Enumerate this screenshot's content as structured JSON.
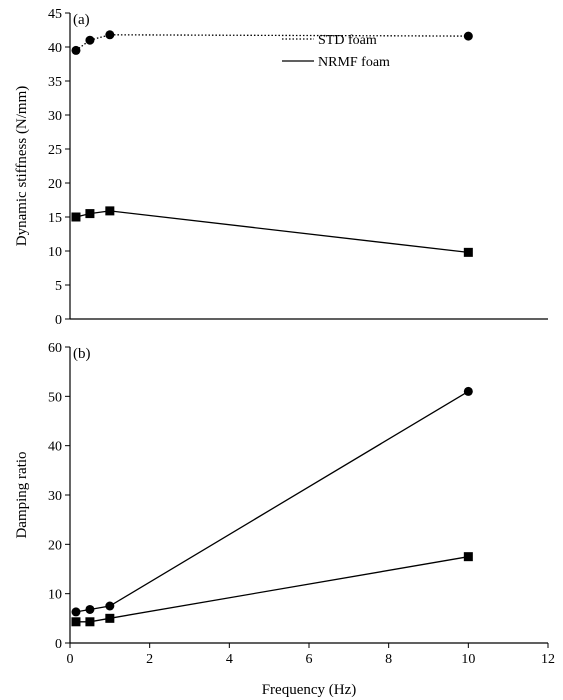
{
  "chart_data": [
    {
      "type": "line",
      "panel_label": "(a)",
      "title": "",
      "xlabel": "",
      "ylabel": "Dynamic stiffness (N/mm)",
      "xlim": [
        0,
        12
      ],
      "ylim": [
        0,
        45
      ],
      "xticks": [],
      "yticks": [
        0,
        5,
        10,
        15,
        20,
        25,
        30,
        35,
        40,
        45
      ],
      "grid": false,
      "legend": {
        "placement": "top-center",
        "entries": [
          "STD foam",
          "NRMF foam"
        ]
      },
      "series": [
        {
          "name": "STD foam",
          "line_style": "dotted",
          "marker": "circle",
          "x": [
            0.15,
            0.5,
            1.0,
            10.0
          ],
          "y": [
            39.5,
            41.0,
            41.8,
            41.6
          ]
        },
        {
          "name": "NRMF foam",
          "line_style": "solid",
          "marker": "square",
          "x": [
            0.15,
            0.5,
            1.0,
            10.0
          ],
          "y": [
            15.0,
            15.5,
            15.9,
            9.8
          ]
        }
      ]
    },
    {
      "type": "line",
      "panel_label": "(b)",
      "title": "",
      "xlabel": "Frequency (Hz)",
      "ylabel": "Damping ratio",
      "xlim": [
        0,
        12
      ],
      "ylim": [
        0,
        60
      ],
      "xticks": [
        0,
        2,
        4,
        6,
        8,
        10,
        12
      ],
      "yticks": [
        0,
        10,
        20,
        30,
        40,
        50,
        60
      ],
      "grid": false,
      "series": [
        {
          "name": "STD foam",
          "line_style": "solid",
          "marker": "circle",
          "x": [
            0.15,
            0.5,
            1.0,
            10.0
          ],
          "y": [
            6.3,
            6.8,
            7.5,
            51.0
          ]
        },
        {
          "name": "NRMF foam",
          "line_style": "solid",
          "marker": "square",
          "x": [
            0.15,
            0.5,
            1.0,
            10.0
          ],
          "y": [
            4.3,
            4.3,
            5.0,
            17.5
          ]
        }
      ]
    }
  ]
}
